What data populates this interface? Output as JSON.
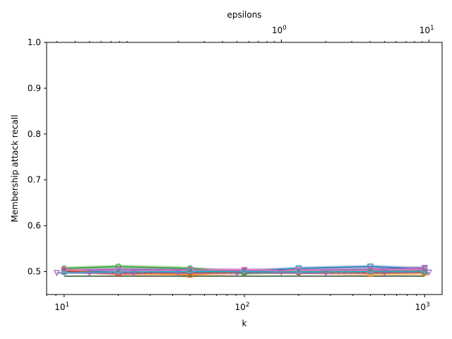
{
  "chart_data": {
    "type": "line",
    "xlabel": "k",
    "ylabel": "Membership attack recall",
    "top_xlabel": "epsilons",
    "xscale": "log",
    "xlim": [
      8,
      1250
    ],
    "ylim": [
      0.45,
      1.0
    ],
    "yticks": [
      0.5,
      0.6,
      0.7,
      0.8,
      0.9,
      1.0
    ],
    "ytick_labels": [
      "0.5",
      "0.6",
      "0.7",
      "0.8",
      "0.9",
      "1.0"
    ],
    "xticks": [
      10,
      100,
      1000
    ],
    "xtick_labels": [
      "10^1",
      "10^2",
      "10^3"
    ],
    "top_xscale": "log",
    "top_xlim": [
      0.0256,
      12.3
    ],
    "top_xticks": [
      1,
      10
    ],
    "top_xtick_labels": [
      "10^0",
      "10^1"
    ],
    "grid": false,
    "x": [
      10,
      20,
      50,
      100,
      200,
      500,
      1000
    ],
    "series": [
      {
        "color": "#1f77b4",
        "marker": "square",
        "values": [
          0.5,
          0.502,
          0.503,
          0.501,
          0.507,
          0.511,
          0.506
        ],
        "band": 0.004
      },
      {
        "color": "#ff7f0e",
        "marker": "square",
        "values": [
          0.502,
          0.497,
          0.493,
          0.499,
          0.5,
          0.495,
          0.497
        ],
        "band": 0.005
      },
      {
        "color": "#2ca02c",
        "marker": "circle",
        "values": [
          0.507,
          0.511,
          0.507,
          0.497,
          0.5,
          0.502,
          0.499
        ],
        "band": 0.004
      },
      {
        "color": "#d62728",
        "marker": "circle",
        "values": [
          0.501,
          0.496,
          0.499,
          0.501,
          0.498,
          0.5,
          0.501
        ],
        "band": 0.004
      },
      {
        "color": "#9467bd",
        "marker": "triangle-down",
        "values": [
          0.503,
          0.505,
          0.504,
          0.502,
          0.503,
          0.505,
          0.508
        ],
        "band": 0.004
      },
      {
        "color": "#8c564b",
        "marker": "diamond",
        "values": [
          0.499,
          0.499,
          0.498,
          0.499,
          0.499,
          0.499,
          0.499
        ],
        "band": 0.003
      },
      {
        "color": "#e377c2",
        "marker": "square",
        "values": [
          0.504,
          0.502,
          0.503,
          0.504,
          0.502,
          0.503,
          0.505
        ],
        "band": 0.004
      },
      {
        "color": "#17becf",
        "marker": "diamond",
        "values": [
          0.498,
          0.499,
          0.5,
          0.5,
          0.499,
          0.5,
          0.5
        ],
        "band": 0.003
      },
      {
        "color": "#2f4f2f",
        "marker": "none",
        "values": [
          0.49,
          0.49,
          0.49,
          0.49,
          0.49,
          0.49,
          0.49
        ],
        "band": 0.0
      }
    ],
    "top_series": [
      {
        "color": "#9467bd",
        "dashed": true,
        "marker": "triangle-down",
        "x": [
          0.03,
          0.05,
          0.1,
          0.2,
          0.5,
          1.0,
          2.0,
          5.0,
          10.0
        ],
        "values": [
          0.497,
          0.497,
          0.496,
          0.497,
          0.496,
          0.498,
          0.496,
          0.497,
          0.498
        ],
        "band": 0.002
      }
    ]
  }
}
